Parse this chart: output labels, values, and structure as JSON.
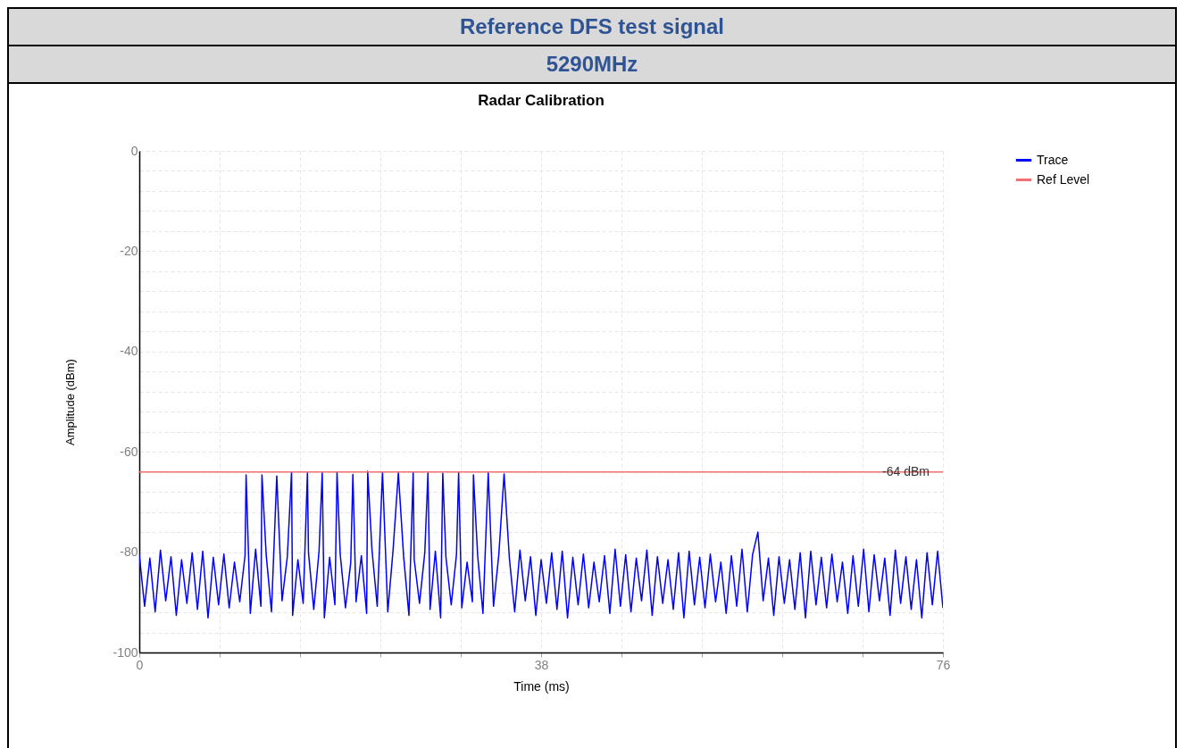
{
  "chart_data": {
    "type": "line",
    "title": "Radar Calibration",
    "xlabel": "Time (ms)",
    "ylabel": "Amplitude (dBm)",
    "annotations": [
      "Reference DFS test signal",
      "5290MHz",
      {
        "text": "-64 dBm",
        "x": 72.5,
        "y": -64
      }
    ],
    "xlim": [
      0,
      76
    ],
    "ylim": [
      -100,
      0
    ],
    "xticks": [
      0,
      {
        "value": 7.6,
        "label": null
      },
      {
        "value": 15.2,
        "label": null
      },
      {
        "value": 22.8,
        "label": null
      },
      {
        "value": 30.4,
        "label": null
      },
      38,
      {
        "value": 45.6,
        "label": null
      },
      {
        "value": 53.2,
        "label": null
      },
      {
        "value": 60.8,
        "label": null
      },
      {
        "value": 68.4,
        "label": null
      },
      76
    ],
    "yticks": [
      -100,
      {
        "value": -96,
        "label": null
      },
      {
        "value": -92,
        "label": null
      },
      {
        "value": -88,
        "label": null
      },
      {
        "value": -84,
        "label": null
      },
      -80,
      {
        "value": -76,
        "label": null
      },
      {
        "value": -72,
        "label": null
      },
      {
        "value": -68,
        "label": null
      },
      {
        "value": -64,
        "label": null
      },
      -60,
      {
        "value": -56,
        "label": null
      },
      {
        "value": -52,
        "label": null
      },
      {
        "value": -48,
        "label": null
      },
      {
        "value": -44,
        "label": null
      },
      -40,
      {
        "value": -36,
        "label": null
      },
      {
        "value": -32,
        "label": null
      },
      {
        "value": -28,
        "label": null
      },
      {
        "value": -24,
        "label": null
      },
      -20,
      {
        "value": -16,
        "label": null
      },
      {
        "value": -12,
        "label": null
      },
      {
        "value": -8,
        "label": null
      },
      {
        "value": -4,
        "label": null
      },
      0
    ],
    "grid": true,
    "legend": "top right",
    "marker": "none",
    "line_style": "solid",
    "series": [
      {
        "name": "Trace",
        "color": "#0000ff",
        "x": [
          0,
          0.5,
          1,
          1.5,
          2,
          2.5,
          3,
          3.5,
          4,
          4.5,
          5,
          5.5,
          6,
          6.5,
          7,
          7.5,
          8,
          8.5,
          9,
          9.5,
          10,
          10.1,
          10.5,
          11,
          11.5,
          11.6,
          12,
          12.5,
          13,
          13.5,
          14,
          14.4,
          14.5,
          15,
          15.5,
          15.9,
          16,
          16.5,
          17,
          17.3,
          17.5,
          18,
          18.5,
          18.7,
          19,
          19.5,
          20,
          20.2,
          20.5,
          21,
          21.5,
          21.6,
          22,
          22.5,
          23,
          23.5,
          24,
          24.5,
          25,
          25.5,
          25.9,
          26,
          26.5,
          27,
          27.3,
          27.5,
          28,
          28.5,
          28.7,
          29,
          29.5,
          30,
          30.2,
          30.5,
          31,
          31.5,
          31.6,
          32,
          32.5,
          33,
          33.5,
          34,
          34.5,
          35,
          35.5,
          36,
          36.5,
          37,
          37.5,
          38,
          38.5,
          39,
          39.5,
          40,
          40.5,
          41,
          41.5,
          42,
          42.5,
          43,
          43.5,
          44,
          44.5,
          45,
          45.5,
          46,
          46.5,
          47,
          47.5,
          48,
          48.5,
          49,
          49.5,
          50,
          50.5,
          51,
          51.5,
          52,
          52.5,
          53,
          53.5,
          54,
          54.5,
          55,
          55.5,
          56,
          56.5,
          57,
          57.5,
          58,
          58.5,
          59,
          59.5,
          60,
          60.5,
          61,
          61.5,
          62,
          62.5,
          63,
          63.5,
          64,
          64.5,
          65,
          65.5,
          66,
          66.5,
          67,
          67.5,
          68,
          68.5,
          69,
          69.5,
          70,
          70.5,
          71,
          71.5,
          72,
          72.5,
          73,
          73.5,
          74,
          74.5,
          75,
          75.5,
          76
        ],
        "values": [
          -80.5,
          -90.8,
          -81.2,
          -91.9,
          -79.6,
          -89.7,
          -80.9,
          -92.6,
          -81.5,
          -90.2,
          -80.1,
          -91.4,
          -79.8,
          -93.1,
          -81.0,
          -90.5,
          -80.4,
          -91.1,
          -82.0,
          -89.9,
          -80.7,
          -64.6,
          -92.2,
          -79.4,
          -90.8,
          -64.6,
          -80.5,
          -91.9,
          -64.8,
          -89.7,
          -80.9,
          -64.0,
          -92.6,
          -81.5,
          -90.2,
          -64.2,
          -80.1,
          -91.4,
          -79.8,
          -64.2,
          -93.1,
          -81.0,
          -90.5,
          -64.1,
          -80.4,
          -91.1,
          -82.0,
          -64.5,
          -89.9,
          -80.7,
          -92.2,
          -63.9,
          -79.4,
          -90.8,
          -64.0,
          -91.9,
          -79.6,
          -64.2,
          -80.9,
          -92.6,
          -64.1,
          -81.5,
          -90.2,
          -80.1,
          -64.2,
          -91.4,
          -79.8,
          -93.1,
          -64.3,
          -81.0,
          -90.5,
          -80.4,
          -64.1,
          -91.1,
          -82.0,
          -89.9,
          -64.6,
          -80.7,
          -92.2,
          -64.2,
          -90.8,
          -80.5,
          -64.4,
          -81.2,
          -91.9,
          -79.6,
          -89.7,
          -80.9,
          -92.6,
          -81.5,
          -90.2,
          -80.1,
          -91.4,
          -79.8,
          -93.1,
          -81.0,
          -90.5,
          -80.4,
          -91.1,
          -82.0,
          -89.9,
          -80.7,
          -92.2,
          -79.4,
          -90.8,
          -80.5,
          -91.9,
          -81.2,
          -89.7,
          -79.6,
          -92.6,
          -80.9,
          -90.2,
          -81.5,
          -91.4,
          -80.1,
          -93.1,
          -79.8,
          -90.5,
          -81.0,
          -91.1,
          -80.4,
          -89.9,
          -82.0,
          -92.2,
          -80.7,
          -90.8,
          -79.4,
          -91.9,
          -80.5,
          -76.0,
          -89.7,
          -81.2,
          -92.6,
          -80.9,
          -90.2,
          -81.5,
          -91.4,
          -80.1,
          -93.1,
          -79.8,
          -90.5,
          -81.0,
          -91.1,
          -80.4,
          -89.9,
          -82.0,
          -92.2,
          -80.7,
          -90.8,
          -79.4,
          -91.9,
          -80.5,
          -89.7,
          -81.2,
          -92.6,
          -79.6,
          -90.2,
          -80.9,
          -91.4,
          -81.5,
          -93.1,
          -80.1,
          -90.5,
          -79.8,
          -91.1
        ]
      },
      {
        "name": "Ref Level",
        "color": "#f27272",
        "x": [
          0,
          76
        ],
        "values": [
          -64,
          -64
        ]
      }
    ]
  }
}
